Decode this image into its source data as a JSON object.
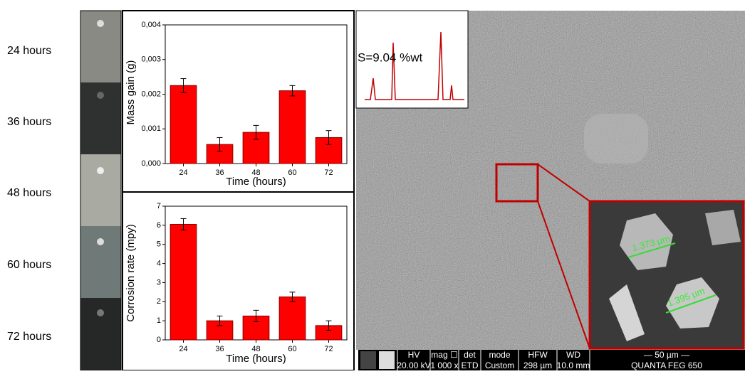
{
  "sample_labels": [
    "24 hours",
    "36 hours",
    "48 hours",
    "60 hours",
    "72 hours"
  ],
  "chart_data": [
    {
      "type": "bar",
      "x_label": "Time (hours)",
      "y_label": "Mass gain (g)",
      "categories": [
        "24",
        "36",
        "48",
        "60",
        "72"
      ],
      "values": [
        0.00225,
        0.00055,
        0.0009,
        0.0021,
        0.00075
      ],
      "errors": [
        0.0002,
        0.0002,
        0.0002,
        0.00015,
        0.0002
      ],
      "color": "#ff0000",
      "ylim": [
        0,
        0.004
      ],
      "yticks": [
        {
          "value": 0,
          "label": "0,000"
        },
        {
          "value": 0.001,
          "label": "0,001"
        },
        {
          "value": 0.002,
          "label": "0,002"
        },
        {
          "value": 0.003,
          "label": "0,003"
        },
        {
          "value": 0.004,
          "label": "0,004"
        }
      ]
    },
    {
      "type": "bar",
      "x_label": "Time (hours)",
      "y_label": "Corrosion rate (mpy)",
      "categories": [
        "24",
        "36",
        "48",
        "60",
        "72"
      ],
      "values": [
        6.05,
        1.0,
        1.25,
        2.25,
        0.75
      ],
      "errors": [
        0.3,
        0.25,
        0.3,
        0.25,
        0.25
      ],
      "color": "#ff0000",
      "ylim": [
        0,
        7
      ],
      "yticks": [
        0,
        1,
        2,
        3,
        4,
        5,
        6,
        7
      ]
    }
  ],
  "sem": {
    "eds_label": "S=9.04 %wt",
    "measurements": [
      "1.373 µm",
      "1.395 µm"
    ],
    "info_bar": {
      "headers": [
        "HV",
        "mag ☐",
        "det",
        "mode",
        "HFW",
        "WD",
        "— 50 µm —"
      ],
      "values": [
        "20.00 kV",
        "1 000 x",
        "ETD",
        "Custom",
        "298 µm",
        "10.0 mm",
        "QUANTA FEG 650"
      ]
    }
  }
}
